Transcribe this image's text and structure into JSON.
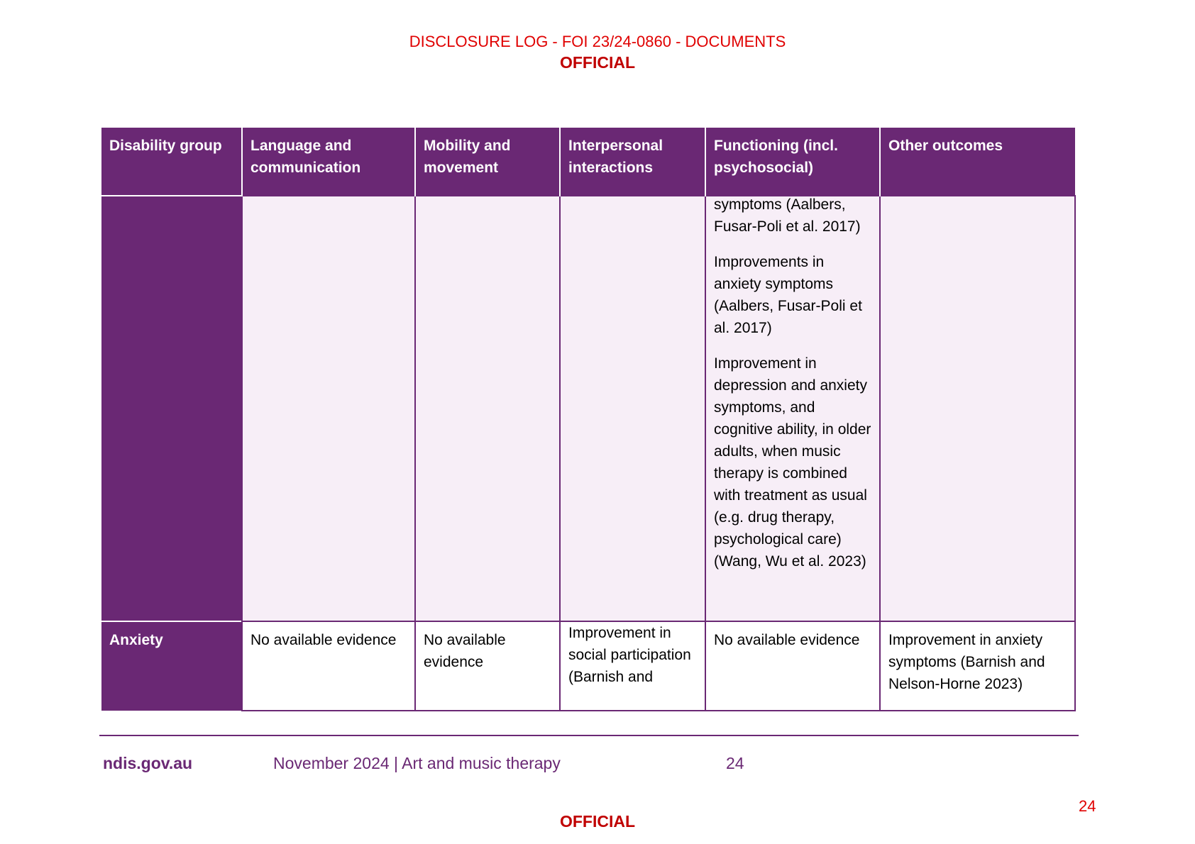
{
  "header": {
    "disclosure": "DISCLOSURE LOG - FOI 23/24-0860 - DOCUMENTS",
    "classification": "OFFICIAL"
  },
  "table": {
    "columns": [
      "Disability group",
      "Language and communication",
      "Mobility and movement",
      "Interpersonal interactions",
      "Functioning (incl. psychosocial)",
      "Other outcomes"
    ],
    "continued_row": {
      "group": "",
      "language": "",
      "mobility": "",
      "interpersonal": "",
      "functioning": [
        "symptoms (Aalbers, Fusar-Poli et al. 2017)",
        "Improvements in anxiety symptoms (Aalbers, Fusar-Poli et al. 2017)",
        "Improvement in depression and anxiety symptoms, and cognitive ability, in older adults, when music therapy is combined with treatment as usual (e.g. drug therapy, psychological care) (Wang, Wu et al. 2023)"
      ],
      "other": ""
    },
    "anxiety_row": {
      "group": "Anxiety",
      "language": "No available evidence",
      "mobility": "No available evidence",
      "interpersonal": "Improvement in social participation (Barnish and",
      "functioning": "No available evidence",
      "other": "Improvement in anxiety symptoms (Barnish and Nelson-Horne 2023)"
    }
  },
  "footer": {
    "site": "ndis.gov.au",
    "doc": "November 2024 | Art and music therapy",
    "page": "24",
    "stamp_page": "24",
    "classification": "OFFICIAL"
  },
  "colors": {
    "brand_purple": "#6a2874",
    "cell_tint": "#f7eef7",
    "stamp_red": "#e00000"
  }
}
